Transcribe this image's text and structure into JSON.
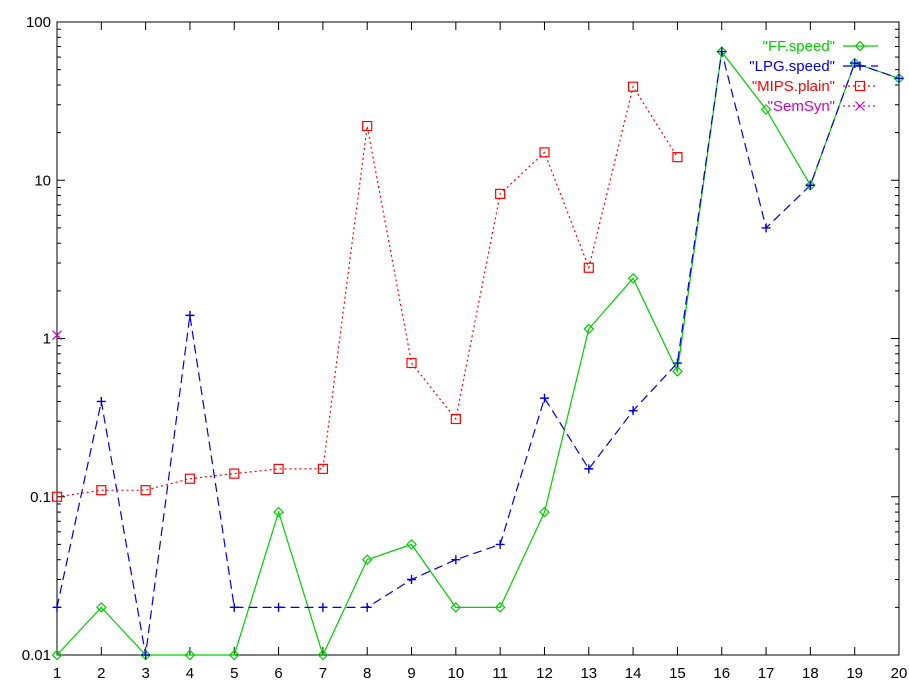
{
  "chart_data": {
    "type": "line",
    "title": "",
    "xlabel": "",
    "ylabel": "",
    "x": [
      1,
      2,
      3,
      4,
      5,
      6,
      7,
      8,
      9,
      10,
      11,
      12,
      13,
      14,
      15,
      16,
      17,
      18,
      19,
      20
    ],
    "xlim": [
      1,
      20
    ],
    "ylim": [
      0.01,
      100
    ],
    "yscale": "log",
    "x_tick_labels": [
      "1",
      "2",
      "3",
      "4",
      "5",
      "6",
      "7",
      "8",
      "9",
      "10",
      "11",
      "12",
      "13",
      "14",
      "15",
      "16",
      "17",
      "18",
      "19",
      "20"
    ],
    "y_tick_values": [
      0.01,
      0.1,
      1,
      10,
      100
    ],
    "y_tick_labels": [
      "0.01",
      "0.1",
      "1",
      "10",
      "100"
    ],
    "grid": false,
    "legend_position": "top-right",
    "series": [
      {
        "name": "\"FF.speed\"",
        "color": "#00cc00",
        "dash": "solid",
        "marker": "diamond",
        "x": [
          1,
          2,
          3,
          4,
          5,
          6,
          7,
          8,
          9,
          10,
          11,
          12,
          13,
          14,
          15,
          16,
          17,
          18,
          19,
          20
        ],
        "y": [
          0.01,
          0.02,
          0.01,
          0.01,
          0.01,
          0.08,
          0.01,
          0.04,
          0.05,
          0.02,
          0.02,
          0.08,
          1.15,
          2.4,
          0.62,
          65,
          28,
          9.3,
          55,
          44
        ]
      },
      {
        "name": "\"LPG.speed\"",
        "color": "#0000dd",
        "dash": "dashed",
        "marker": "plus",
        "x": [
          1,
          2,
          3,
          4,
          5,
          6,
          7,
          8,
          9,
          10,
          11,
          12,
          13,
          14,
          15,
          16,
          17,
          18,
          19,
          20
        ],
        "y": [
          0.02,
          0.4,
          0.01,
          1.4,
          0.02,
          0.02,
          0.02,
          0.02,
          0.03,
          0.04,
          0.05,
          0.42,
          0.15,
          0.35,
          0.7,
          65,
          5,
          9.3,
          55,
          44
        ]
      },
      {
        "name": "\"MIPS.plain\"",
        "color": "#ff0000",
        "dash": "dotted",
        "marker": "square",
        "x": [
          1,
          2,
          3,
          4,
          5,
          6,
          7,
          8,
          9,
          10,
          11,
          12,
          13,
          14,
          15
        ],
        "y": [
          0.1,
          0.11,
          0.11,
          0.13,
          0.14,
          0.15,
          0.15,
          22,
          0.7,
          0.31,
          8.2,
          15,
          2.8,
          39,
          14
        ]
      },
      {
        "name": "\"SemSyn\"",
        "color": "#cc00cc",
        "dash": "dotted",
        "marker": "cross",
        "x": [
          1
        ],
        "y": [
          1.05
        ]
      }
    ]
  }
}
